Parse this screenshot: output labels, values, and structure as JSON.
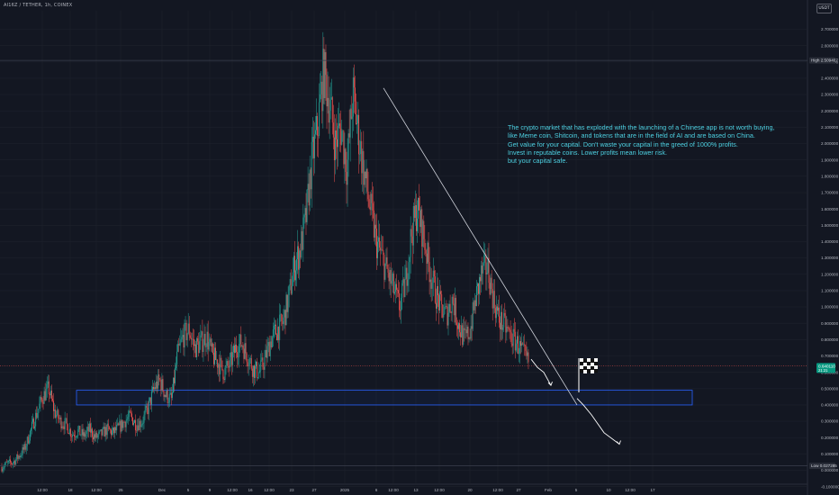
{
  "header": {
    "symbol_line": "AI16Z / TETHER, 1h, COINEX",
    "currency_button": "USDT"
  },
  "annotation": {
    "lines": [
      "The crypto market that has exploded with the launching of a Chinese app is not worth buying,",
      "like Meme coin, Shitcoin, and tokens that are in the field of AI and are based on China.",
      "Get value for your capital. Don't waste your capital in the greed of 1000% profits.",
      "Invest in reputable coins. Lower profits mean lower risk.",
      "but your capital safe."
    ]
  },
  "chart_data": {
    "type": "candlestick",
    "colors": {
      "up": "#26a69a",
      "down": "#ef5350",
      "grid": "#1e222d",
      "axis_text": "#b2b5be",
      "box": "#2962ff",
      "trend": "#d1d4dc",
      "arrow": "#ffffff",
      "annotation": "#4dd0e1"
    },
    "ylim": [
      -0.2,
      2.8
    ],
    "y_ticks": [
      "2.700000",
      "2.600000",
      "2.500000",
      "2.400000",
      "2.300000",
      "2.200000",
      "2.100000",
      "2.000000",
      "1.900000",
      "1.800000",
      "1.700000",
      "1.600000",
      "1.500000",
      "1.400000",
      "1.300000",
      "1.200000",
      "1.100000",
      "1.000000",
      "0.900000",
      "0.800000",
      "0.700000",
      "0.600000",
      "0.500000",
      "0.400000",
      "0.300000",
      "0.200000",
      "0.100000",
      "0.000000",
      "-0.100000"
    ],
    "x_ticks": [
      "12:00",
      "18",
      "12:00",
      "25",
      "Dec",
      "5",
      "9",
      "12:00",
      "16",
      "12:00",
      "23",
      "27",
      "2025",
      "6",
      "12:00",
      "13",
      "12:00",
      "20",
      "12:00",
      "27",
      "Feb",
      "5",
      "10",
      "12:00",
      "17"
    ],
    "high_label": {
      "text": "High",
      "value": "2.509407",
      "price": 2.509407
    },
    "low_label": {
      "text": "Low",
      "value": "0.027285",
      "price": 0.027285
    },
    "current_price": {
      "value": "0.640110",
      "countdown": "21:21",
      "price": 0.64011
    },
    "support_zone": {
      "top": 0.49,
      "bottom": 0.4
    },
    "trendline": {
      "from_price": 2.34,
      "to_price": 0.4
    },
    "price_path": [
      0.02,
      0.04,
      0.05,
      0.09,
      0.14,
      0.25,
      0.35,
      0.45,
      0.5,
      0.36,
      0.3,
      0.28,
      0.22,
      0.24,
      0.21,
      0.25,
      0.2,
      0.22,
      0.25,
      0.23,
      0.26,
      0.3,
      0.33,
      0.28,
      0.3,
      0.38,
      0.5,
      0.55,
      0.46,
      0.43,
      0.7,
      0.82,
      0.86,
      0.75,
      0.78,
      0.82,
      0.7,
      0.66,
      0.6,
      0.65,
      0.75,
      0.78,
      0.7,
      0.62,
      0.6,
      0.68,
      0.8,
      0.86,
      0.9,
      1.05,
      1.25,
      1.35,
      1.55,
      1.9,
      2.1,
      2.45,
      2.25,
      2.0,
      2.1,
      1.85,
      2.3,
      2.05,
      1.8,
      1.6,
      1.4,
      1.3,
      1.2,
      1.1,
      1.0,
      1.15,
      1.45,
      1.6,
      1.45,
      1.25,
      1.1,
      1.0,
      0.95,
      1.05,
      0.9,
      0.8,
      0.85,
      1.05,
      1.2,
      1.25,
      1.05,
      0.92,
      0.88,
      0.82,
      0.78,
      0.72,
      0.66
    ],
    "projection_arrows": [
      {
        "points": [
          [
            0.68,
            0.66
          ],
          [
            0.63,
            0.6
          ],
          [
            0.6,
            0.5
          ],
          [
            0.52,
            0.45
          ]
        ]
      },
      {
        "points": [
          [
            0.44,
            0.43
          ],
          [
            0.4,
            0.38
          ],
          [
            0.34,
            0.3
          ],
          [
            0.23,
            0.25
          ],
          [
            0.16,
            0.18
          ]
        ]
      }
    ]
  }
}
